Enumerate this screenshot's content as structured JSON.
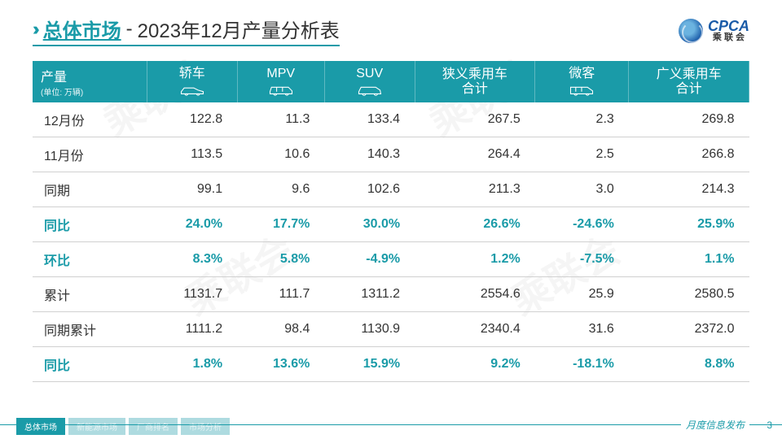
{
  "colors": {
    "brand": "#1a9ba8",
    "logo_blue": "#1a5ba8",
    "text": "#333333",
    "border": "#d0d0d0",
    "bg": "#ffffff"
  },
  "title": {
    "main": "总体市场",
    "sep": "-",
    "sub": "2023年12月产量分析表"
  },
  "logo": {
    "abbr": "CPCA",
    "cn": "乘 联 会"
  },
  "watermark": "乘联会",
  "table": {
    "header": {
      "label": "产量",
      "unit": "(单位: 万辆)",
      "cols": [
        {
          "label": "轿车",
          "icon": "sedan"
        },
        {
          "label": "MPV",
          "icon": "mpv"
        },
        {
          "label": "SUV",
          "icon": "suv"
        },
        {
          "label": "狭义乘用车\n合计",
          "icon": null
        },
        {
          "label": "微客",
          "icon": "van"
        },
        {
          "label": "广义乘用车\n合计",
          "icon": null
        }
      ]
    },
    "rows": [
      {
        "label": "12月份",
        "hl": false,
        "cells": [
          "122.8",
          "11.3",
          "133.4",
          "267.5",
          "2.3",
          "269.8"
        ]
      },
      {
        "label": "11月份",
        "hl": false,
        "cells": [
          "113.5",
          "10.6",
          "140.3",
          "264.4",
          "2.5",
          "266.8"
        ]
      },
      {
        "label": "同期",
        "hl": false,
        "cells": [
          "99.1",
          "9.6",
          "102.6",
          "211.3",
          "3.0",
          "214.3"
        ]
      },
      {
        "label": "同比",
        "hl": true,
        "cells": [
          "24.0%",
          "17.7%",
          "30.0%",
          "26.6%",
          "-24.6%",
          "25.9%"
        ]
      },
      {
        "label": "环比",
        "hl": true,
        "cells": [
          "8.3%",
          "5.8%",
          "-4.9%",
          "1.2%",
          "-7.5%",
          "1.1%"
        ]
      },
      {
        "label": "累计",
        "hl": false,
        "cells": [
          "1131.7",
          "111.7",
          "1311.2",
          "2554.6",
          "25.9",
          "2580.5"
        ]
      },
      {
        "label": "同期累计",
        "hl": false,
        "cells": [
          "1111.2",
          "98.4",
          "1130.9",
          "2340.4",
          "31.6",
          "2372.0"
        ]
      },
      {
        "label": "同比",
        "hl": true,
        "cells": [
          "1.8%",
          "13.6%",
          "15.9%",
          "9.2%",
          "-18.1%",
          "8.8%"
        ]
      }
    ]
  },
  "footer": {
    "tabs": [
      "总体市场",
      "新能源市场",
      "厂商排名",
      "市场分析"
    ],
    "right": "月度信息发布",
    "page": "3"
  }
}
